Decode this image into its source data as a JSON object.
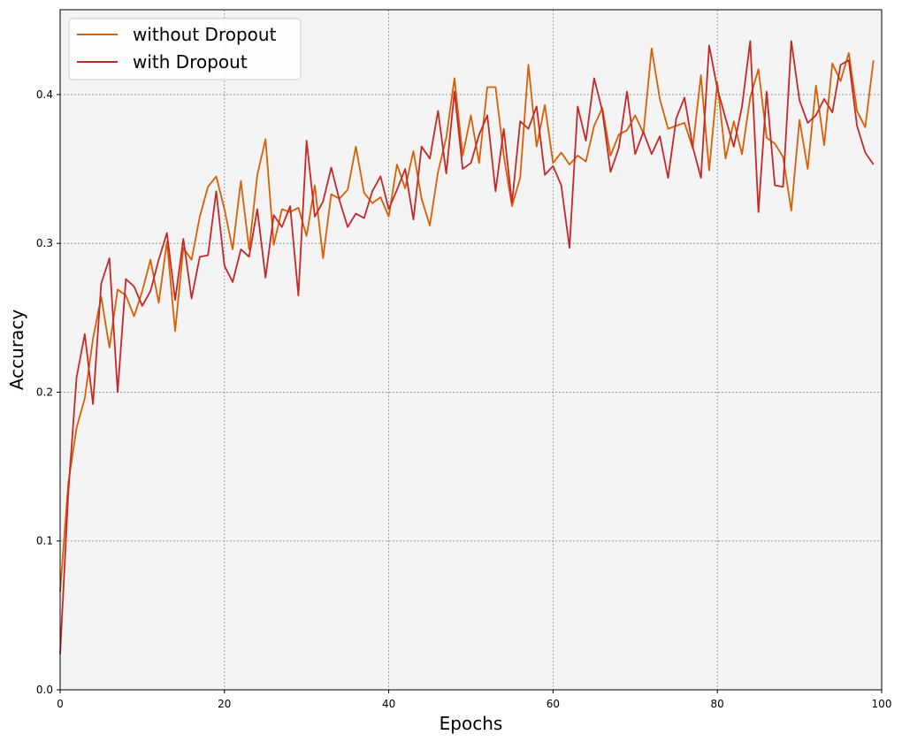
{
  "chart_data": {
    "type": "line",
    "title": "",
    "xlabel": "Epochs",
    "ylabel": "Accuracy",
    "xlim": [
      0,
      100
    ],
    "ylim": [
      0,
      0.457
    ],
    "xticks": [
      0,
      20,
      40,
      60,
      80,
      100
    ],
    "xtick_labels": [
      "0",
      "20",
      "40",
      "60",
      "80",
      "100"
    ],
    "yticks": [
      0.0,
      0.1,
      0.2,
      0.3,
      0.4
    ],
    "ytick_labels": [
      "0.0",
      "0.1",
      "0.2",
      "0.3",
      "0.4"
    ],
    "grid": true,
    "legend_position": "top-left",
    "x": [
      0,
      1,
      2,
      3,
      4,
      5,
      6,
      7,
      8,
      9,
      10,
      11,
      12,
      13,
      14,
      15,
      16,
      17,
      18,
      19,
      20,
      21,
      22,
      23,
      24,
      25,
      26,
      27,
      28,
      29,
      30,
      31,
      32,
      33,
      34,
      35,
      36,
      37,
      38,
      39,
      40,
      41,
      42,
      43,
      44,
      45,
      46,
      47,
      48,
      49,
      50,
      51,
      52,
      53,
      54,
      55,
      56,
      57,
      58,
      59,
      60,
      61,
      62,
      63,
      64,
      65,
      66,
      67,
      68,
      69,
      70,
      71,
      72,
      73,
      74,
      75,
      76,
      77,
      78,
      79,
      80,
      81,
      82,
      83,
      84,
      85,
      86,
      87,
      88,
      89,
      90,
      91,
      92,
      93,
      94,
      95,
      96,
      97,
      98,
      99
    ],
    "series": [
      {
        "name": "without Dropout",
        "color": "#d95f02",
        "values": [
          0.066,
          0.139,
          0.176,
          0.196,
          0.236,
          0.264,
          0.23,
          0.269,
          0.265,
          0.251,
          0.268,
          0.289,
          0.26,
          0.301,
          0.241,
          0.297,
          0.289,
          0.318,
          0.338,
          0.345,
          0.323,
          0.296,
          0.342,
          0.296,
          0.346,
          0.37,
          0.299,
          0.323,
          0.321,
          0.324,
          0.305,
          0.339,
          0.29,
          0.333,
          0.33,
          0.336,
          0.365,
          0.334,
          0.327,
          0.331,
          0.318,
          0.353,
          0.337,
          0.362,
          0.33,
          0.312,
          0.348,
          0.371,
          0.411,
          0.359,
          0.386,
          0.354,
          0.405,
          0.405,
          0.359,
          0.325,
          0.344,
          0.42,
          0.365,
          0.393,
          0.354,
          0.361,
          0.353,
          0.359,
          0.355,
          0.379,
          0.391,
          0.359,
          0.373,
          0.376,
          0.386,
          0.374,
          0.431,
          0.397,
          0.377,
          0.379,
          0.381,
          0.364,
          0.413,
          0.349,
          0.408,
          0.357,
          0.382,
          0.36,
          0.398,
          0.417,
          0.371,
          0.367,
          0.358,
          0.322,
          0.383,
          0.35,
          0.406,
          0.366,
          0.421,
          0.409,
          0.428,
          0.389,
          0.378,
          0.423
        ]
      },
      {
        "name": "with Dropout",
        "color": "#c62828",
        "values": [
          0.024,
          0.133,
          0.21,
          0.239,
          0.192,
          0.273,
          0.29,
          0.2,
          0.276,
          0.271,
          0.258,
          0.268,
          0.289,
          0.307,
          0.262,
          0.303,
          0.263,
          0.291,
          0.292,
          0.335,
          0.285,
          0.274,
          0.296,
          0.291,
          0.323,
          0.277,
          0.319,
          0.311,
          0.325,
          0.265,
          0.369,
          0.318,
          0.328,
          0.351,
          0.329,
          0.311,
          0.32,
          0.317,
          0.335,
          0.345,
          0.323,
          0.336,
          0.35,
          0.316,
          0.365,
          0.357,
          0.389,
          0.347,
          0.402,
          0.35,
          0.354,
          0.373,
          0.386,
          0.335,
          0.377,
          0.327,
          0.382,
          0.377,
          0.392,
          0.346,
          0.352,
          0.339,
          0.297,
          0.392,
          0.369,
          0.411,
          0.389,
          0.348,
          0.364,
          0.402,
          0.36,
          0.375,
          0.36,
          0.372,
          0.344,
          0.384,
          0.398,
          0.365,
          0.344,
          0.433,
          0.404,
          0.384,
          0.365,
          0.392,
          0.436,
          0.321,
          0.402,
          0.339,
          0.338,
          0.436,
          0.396,
          0.381,
          0.386,
          0.397,
          0.388,
          0.42,
          0.423,
          0.379,
          0.361,
          0.353
        ]
      }
    ]
  }
}
